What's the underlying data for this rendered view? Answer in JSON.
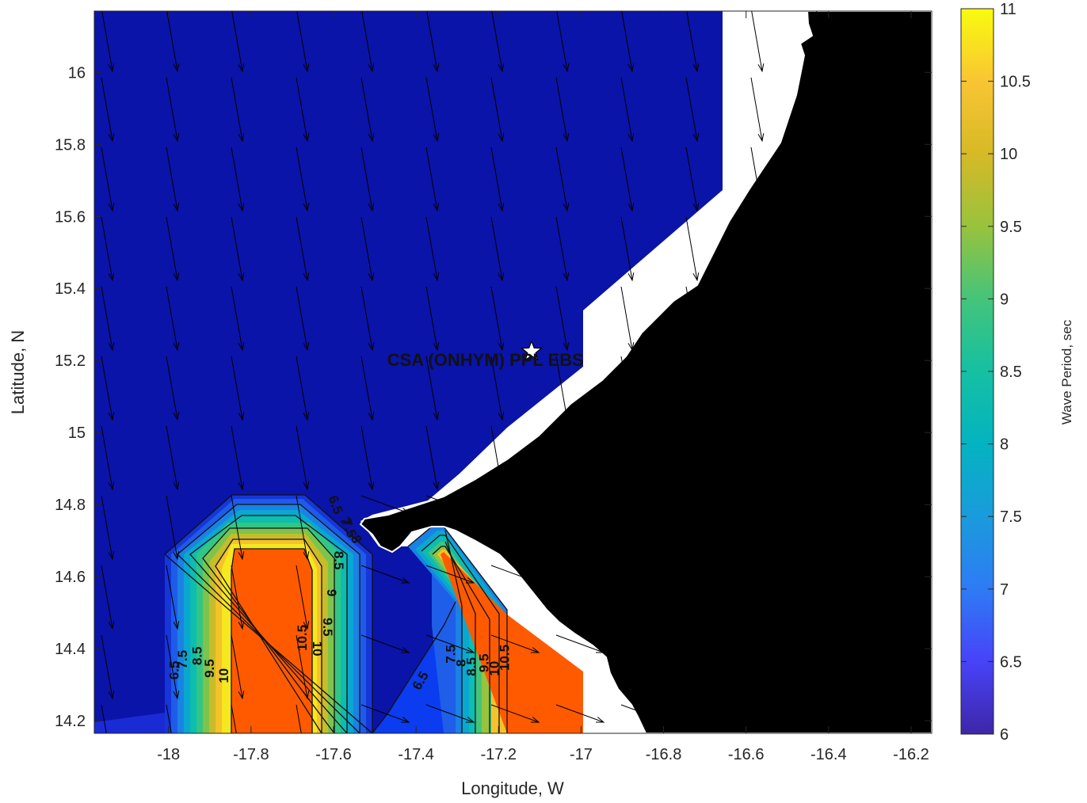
{
  "chart_data": {
    "type": "heatmap",
    "title": "",
    "xlabel": "Longitude, W",
    "ylabel": "Latitude, N",
    "xlim": [
      -18.18,
      -16.15
    ],
    "ylim": [
      14.165,
      16.17
    ],
    "x_ticks": [
      -18,
      -17.8,
      -17.6,
      -17.4,
      -17.2,
      -17,
      -16.8,
      -16.6,
      -16.4,
      -16.2
    ],
    "y_ticks": [
      14.2,
      14.4,
      14.6,
      14.8,
      15,
      15.2,
      15.4,
      15.6,
      15.8,
      16
    ],
    "colorbar": {
      "label": "Wave Period, sec",
      "range": [
        6,
        11
      ],
      "ticks": [
        6,
        6.5,
        7,
        7.5,
        8,
        8.5,
        9,
        9.5,
        10,
        10.5,
        11
      ],
      "colormap": "parula"
    },
    "contour_levels": [
      6.5,
      7,
      7.5,
      8,
      8.5,
      9,
      9.5,
      10,
      10.5
    ],
    "contour_labels": [
      {
        "text": "6.5",
        "lon": -17.975,
        "lat": 14.34,
        "rot": -90
      },
      {
        "text": "7.5",
        "lon": -17.955,
        "lat": 14.37,
        "rot": -90
      },
      {
        "text": "8.5",
        "lon": -17.92,
        "lat": 14.38,
        "rot": -90
      },
      {
        "text": "9.5",
        "lon": -17.89,
        "lat": 14.345,
        "rot": -90
      },
      {
        "text": "10",
        "lon": -17.855,
        "lat": 14.325,
        "rot": -90
      },
      {
        "text": "6.5",
        "lon": -17.605,
        "lat": 14.795,
        "rot": 70
      },
      {
        "text": "7",
        "lon": -17.582,
        "lat": 14.75,
        "rot": 70
      },
      {
        "text": "7.5",
        "lon": -17.572,
        "lat": 14.73,
        "rot": 70
      },
      {
        "text": "8",
        "lon": -17.555,
        "lat": 14.7,
        "rot": 70
      },
      {
        "text": "8.5",
        "lon": -17.598,
        "lat": 14.645,
        "rot": 90
      },
      {
        "text": "9",
        "lon": -17.615,
        "lat": 14.555,
        "rot": 90
      },
      {
        "text": "9.5",
        "lon": -17.625,
        "lat": 14.46,
        "rot": 90
      },
      {
        "text": "10",
        "lon": -17.65,
        "lat": 14.4,
        "rot": 90
      },
      {
        "text": "10.5",
        "lon": -17.665,
        "lat": 14.43,
        "rot": -90
      },
      {
        "text": "6.5",
        "lon": -17.38,
        "lat": 14.305,
        "rot": -60
      },
      {
        "text": "7.5",
        "lon": -17.305,
        "lat": 14.385,
        "rot": -90
      },
      {
        "text": "8",
        "lon": -17.28,
        "lat": 14.36,
        "rot": -90
      },
      {
        "text": "8.5",
        "lon": -17.255,
        "lat": 14.35,
        "rot": -90
      },
      {
        "text": "9.5",
        "lon": -17.225,
        "lat": 14.36,
        "rot": -90
      },
      {
        "text": "10",
        "lon": -17.2,
        "lat": 14.345,
        "rot": -90
      },
      {
        "text": "10.5",
        "lon": -17.175,
        "lat": 14.375,
        "rot": -90
      }
    ],
    "annotations": [
      {
        "text": "CSA (ONHYM) PPL EBS",
        "lon": -17.47,
        "lat": 15.185,
        "marker_lon": -17.12,
        "marker_lat": 15.225
      }
    ],
    "arrows_direction": "south-southeast"
  }
}
